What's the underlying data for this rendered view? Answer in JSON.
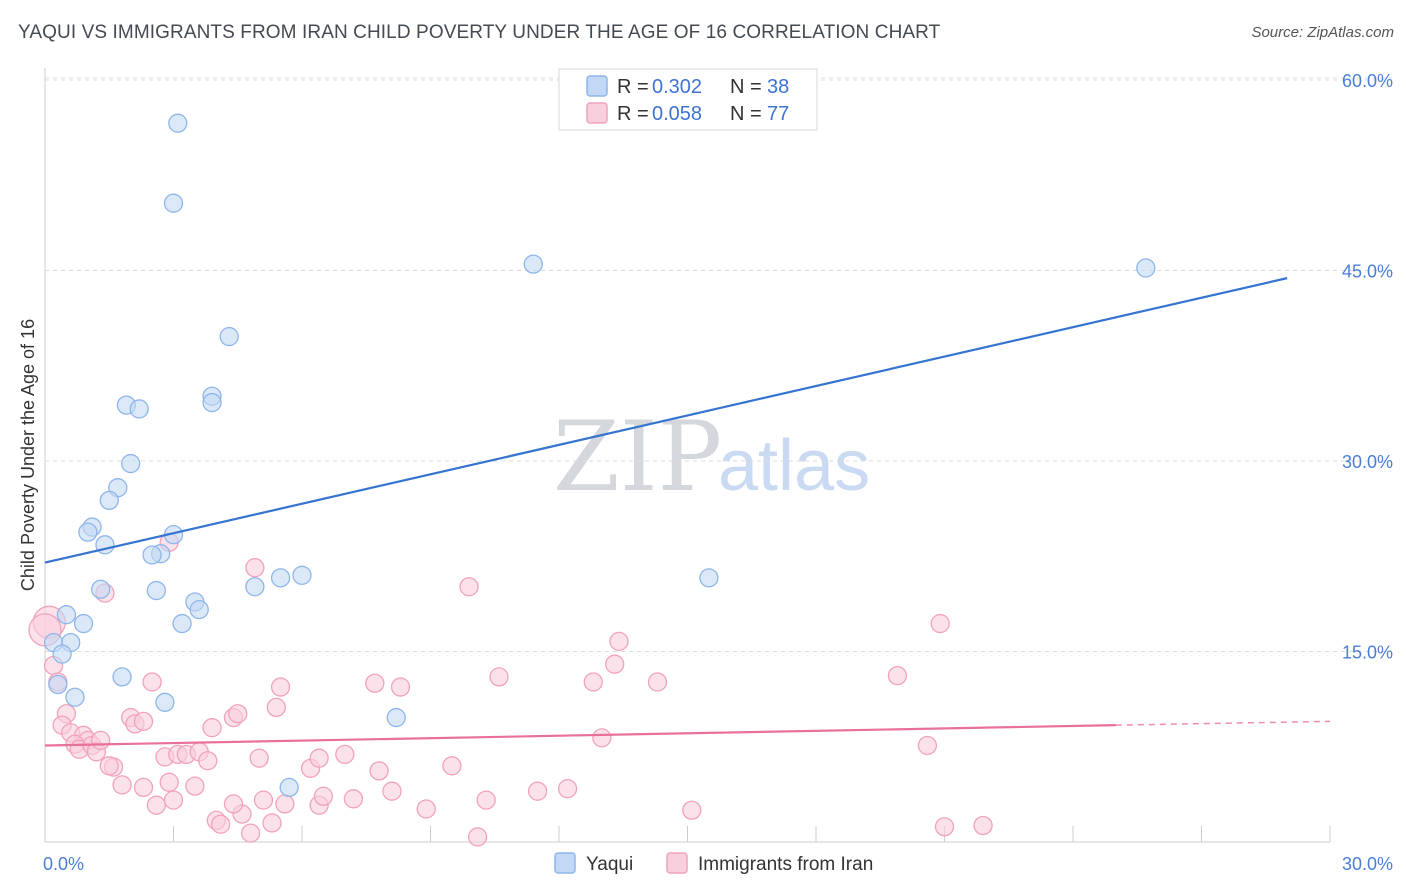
{
  "header": {
    "title": "YAQUI VS IMMIGRANTS FROM IRAN CHILD POVERTY UNDER THE AGE OF 16 CORRELATION CHART",
    "source": "Source: ZipAtlas.com"
  },
  "watermark": {
    "zip": "ZIP",
    "atlas": "atlas"
  },
  "legend": {
    "r_label": "R =",
    "n_label": "N =",
    "entries": [
      {
        "r": "0.302",
        "n": "38"
      },
      {
        "r": "0.058",
        "n": "77"
      }
    ]
  },
  "chart_data": {
    "type": "scatter",
    "title": "YAQUI VS IMMIGRANTS FROM IRAN CHILD POVERTY UNDER THE AGE OF 16 CORRELATION CHART",
    "xlabel": "",
    "ylabel": "Child Poverty Under the Age of 16",
    "xlim": [
      0,
      30
    ],
    "ylim": [
      0,
      60
    ],
    "x_tick_labels": [
      "0.0%",
      "30.0%"
    ],
    "y_ticks": [
      {
        "value": 15,
        "label": "15.0%"
      },
      {
        "value": 30,
        "label": "30.0%"
      },
      {
        "value": 45,
        "label": "45.0%"
      },
      {
        "value": 60,
        "label": "60.0%"
      }
    ],
    "grid": true,
    "legend_position": "top-center",
    "series": [
      {
        "name": "Yaqui",
        "color": "#8fb6ea",
        "fill": "#c3d8f4",
        "line_color": "#3574d0",
        "trend": {
          "x0": 0,
          "y0": 22.0,
          "x1": 29.0,
          "y1": 44.4,
          "dash_to": null
        },
        "points": [
          [
            3.1,
            56.6
          ],
          [
            3.0,
            50.3
          ],
          [
            11.4,
            45.5
          ],
          [
            25.7,
            45.2
          ],
          [
            4.3,
            39.8
          ],
          [
            3.9,
            35.1
          ],
          [
            3.9,
            34.6
          ],
          [
            1.9,
            34.4
          ],
          [
            2.2,
            34.1
          ],
          [
            2.0,
            29.8
          ],
          [
            1.7,
            27.9
          ],
          [
            1.5,
            26.9
          ],
          [
            1.1,
            24.8
          ],
          [
            1.0,
            24.4
          ],
          [
            3.0,
            24.2
          ],
          [
            1.4,
            23.4
          ],
          [
            2.7,
            22.7
          ],
          [
            2.5,
            22.6
          ],
          [
            5.5,
            20.8
          ],
          [
            15.5,
            20.8
          ],
          [
            4.9,
            20.1
          ],
          [
            1.3,
            19.9
          ],
          [
            2.6,
            19.8
          ],
          [
            3.5,
            18.9
          ],
          [
            3.6,
            18.3
          ],
          [
            0.5,
            17.9
          ],
          [
            0.9,
            17.2
          ],
          [
            3.2,
            17.2
          ],
          [
            0.2,
            15.7
          ],
          [
            0.6,
            15.7
          ],
          [
            0.4,
            14.8
          ],
          [
            1.8,
            13.0
          ],
          [
            0.7,
            11.4
          ],
          [
            2.8,
            11.0
          ],
          [
            8.2,
            9.8
          ],
          [
            5.7,
            4.3
          ],
          [
            0.3,
            12.4
          ],
          [
            6.0,
            21.0
          ]
        ]
      },
      {
        "name": "Immigrants from Iran",
        "color": "#f2a2bc",
        "fill": "#f8cfdc",
        "line_color": "#e8709a",
        "trend": {
          "x0": 0,
          "y0": 7.6,
          "x1": 25.0,
          "y1": 9.2,
          "dash_to": [
            30.0,
            9.5
          ]
        },
        "points": [
          [
            0.1,
            17.3
          ],
          [
            0.0,
            16.7
          ],
          [
            0.2,
            13.9
          ],
          [
            0.3,
            12.6
          ],
          [
            0.5,
            10.1
          ],
          [
            0.4,
            9.2
          ],
          [
            0.6,
            8.6
          ],
          [
            0.9,
            8.4
          ],
          [
            1.0,
            8.0
          ],
          [
            0.7,
            7.7
          ],
          [
            0.8,
            7.3
          ],
          [
            1.1,
            7.6
          ],
          [
            1.2,
            7.1
          ],
          [
            1.3,
            8.0
          ],
          [
            1.6,
            5.9
          ],
          [
            1.5,
            6.0
          ],
          [
            2.0,
            9.8
          ],
          [
            2.1,
            9.3
          ],
          [
            2.3,
            9.5
          ],
          [
            2.5,
            12.6
          ],
          [
            2.8,
            6.7
          ],
          [
            3.1,
            6.9
          ],
          [
            3.3,
            6.9
          ],
          [
            3.6,
            7.1
          ],
          [
            3.8,
            6.4
          ],
          [
            3.9,
            9.0
          ],
          [
            4.4,
            9.8
          ],
          [
            4.5,
            10.1
          ],
          [
            5.0,
            6.6
          ],
          [
            5.4,
            10.6
          ],
          [
            5.5,
            12.2
          ],
          [
            6.2,
            5.8
          ],
          [
            6.4,
            6.6
          ],
          [
            7.0,
            6.9
          ],
          [
            7.7,
            12.5
          ],
          [
            7.8,
            5.6
          ],
          [
            8.1,
            4.0
          ],
          [
            8.3,
            12.2
          ],
          [
            9.5,
            6.0
          ],
          [
            10.6,
            13.0
          ],
          [
            12.8,
            12.6
          ],
          [
            13.3,
            14.0
          ],
          [
            13.4,
            15.8
          ],
          [
            14.3,
            12.6
          ],
          [
            13.0,
            8.2
          ],
          [
            19.9,
            13.1
          ],
          [
            20.6,
            7.6
          ],
          [
            21.0,
            1.2
          ],
          [
            6.4,
            2.9
          ],
          [
            8.9,
            2.6
          ],
          [
            10.3,
            3.3
          ],
          [
            11.5,
            4.0
          ],
          [
            12.2,
            4.2
          ],
          [
            10.1,
            0.4
          ],
          [
            9.9,
            20.1
          ],
          [
            4.9,
            21.6
          ],
          [
            2.9,
            23.6
          ],
          [
            1.4,
            19.6
          ],
          [
            2.3,
            4.3
          ],
          [
            2.6,
            2.9
          ],
          [
            2.9,
            4.7
          ],
          [
            3.0,
            3.3
          ],
          [
            4.0,
            1.7
          ],
          [
            4.1,
            1.4
          ],
          [
            4.6,
            2.2
          ],
          [
            4.8,
            0.7
          ],
          [
            5.1,
            3.3
          ],
          [
            5.3,
            1.5
          ],
          [
            5.6,
            3.0
          ],
          [
            7.2,
            3.4
          ],
          [
            4.4,
            3.0
          ],
          [
            15.1,
            2.5
          ],
          [
            21.9,
            1.3
          ],
          [
            20.9,
            17.2
          ],
          [
            1.8,
            4.5
          ],
          [
            3.5,
            4.4
          ],
          [
            6.5,
            3.6
          ]
        ]
      }
    ]
  }
}
